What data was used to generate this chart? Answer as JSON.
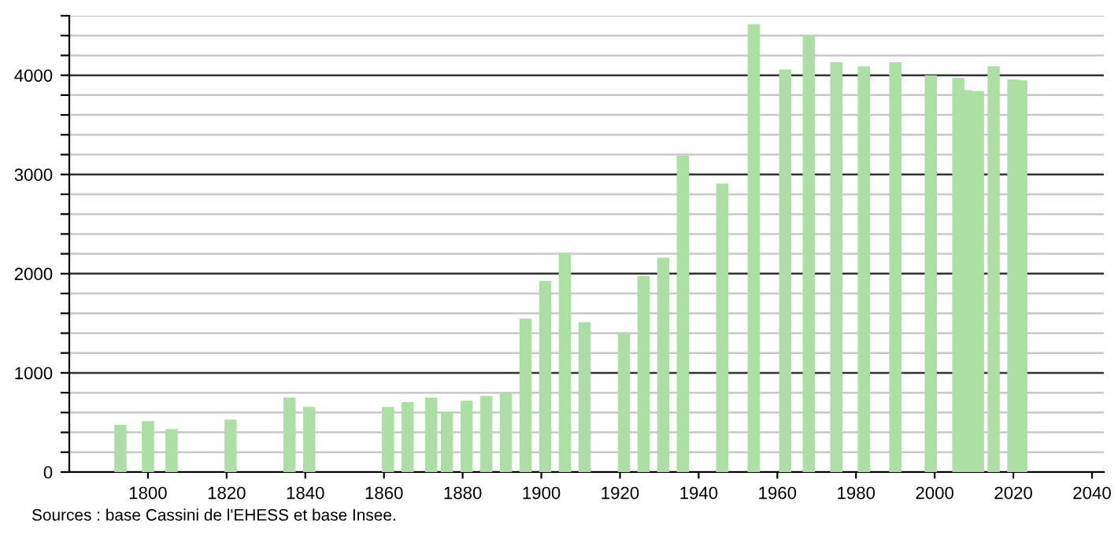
{
  "chart_data": {
    "type": "bar",
    "x": [
      1793,
      1800,
      1806,
      1821,
      1836,
      1841,
      1861,
      1866,
      1872,
      1876,
      1881,
      1886,
      1891,
      1896,
      1901,
      1906,
      1911,
      1921,
      1926,
      1931,
      1936,
      1946,
      1954,
      1962,
      1968,
      1975,
      1982,
      1990,
      1999,
      2006,
      2008,
      2011,
      2015,
      2020,
      2022
    ],
    "values": [
      477,
      514,
      434,
      530,
      752,
      657,
      657,
      705,
      752,
      604,
      720,
      768,
      795,
      1547,
      1928,
      2209,
      1510,
      1399,
      1976,
      2162,
      3189,
      2909,
      4514,
      4058,
      4397,
      4132,
      4090,
      4132,
      4000,
      3974,
      3850,
      3841,
      4090,
      3958,
      3950
    ],
    "color": "#acdfa4",
    "xlim": [
      1780,
      2043
    ],
    "xticks": [
      1800,
      1820,
      1840,
      1860,
      1880,
      1900,
      1920,
      1940,
      1960,
      1980,
      2000,
      2020,
      2040
    ],
    "ylim": [
      0,
      4600
    ],
    "yticks": [
      0,
      {
        "value": 200,
        "label": null
      },
      {
        "value": 400,
        "label": null
      },
      {
        "value": 600,
        "label": null
      },
      {
        "value": 800,
        "label": null
      },
      1000,
      {
        "value": 1200,
        "label": null
      },
      {
        "value": 1400,
        "label": null
      },
      {
        "value": 1600,
        "label": null
      },
      {
        "value": 1800,
        "label": null
      },
      2000,
      {
        "value": 2200,
        "label": null
      },
      {
        "value": 2400,
        "label": null
      },
      {
        "value": 2600,
        "label": null
      },
      {
        "value": 2800,
        "label": null
      },
      3000,
      {
        "value": 3200,
        "label": null
      },
      {
        "value": 3400,
        "label": null
      },
      {
        "value": 3600,
        "label": null
      },
      {
        "value": 3800,
        "label": null
      },
      4000,
      {
        "value": 4200,
        "label": null
      },
      {
        "value": 4400,
        "label": null
      },
      {
        "value": 4600,
        "label": null
      }
    ],
    "grid": "y",
    "annotations": [
      "Sources : base Cassini de l'EHESS et base Insee."
    ]
  }
}
